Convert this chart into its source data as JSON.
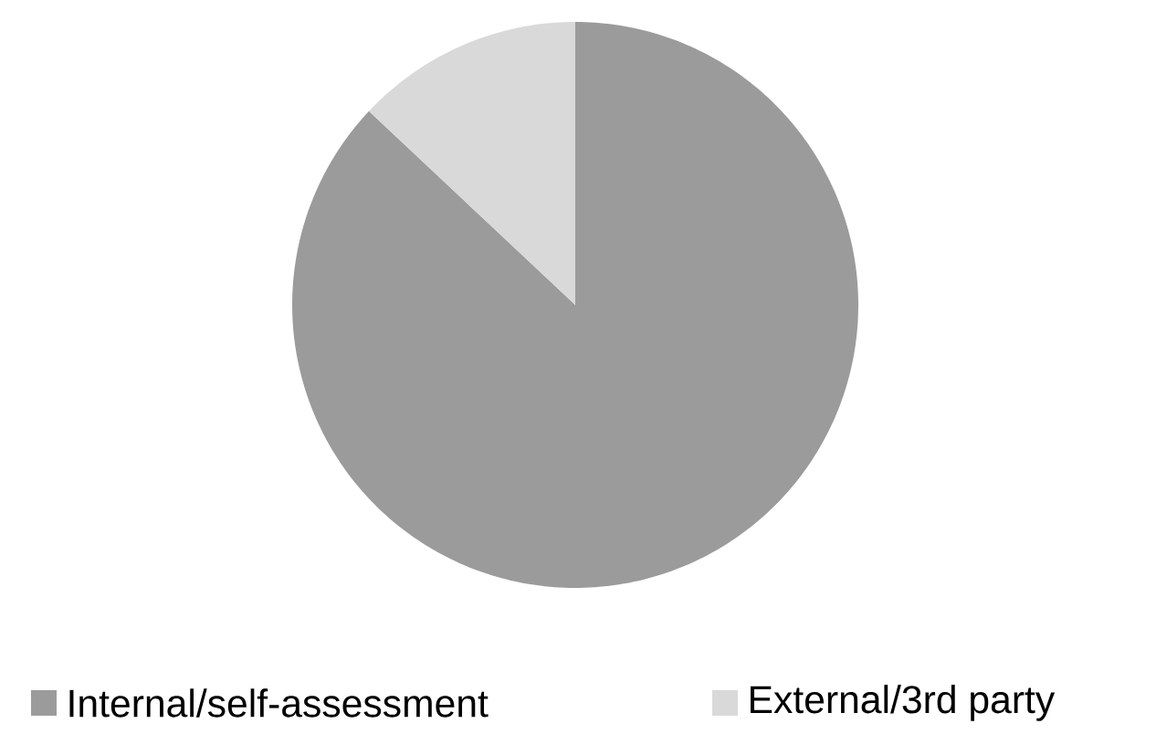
{
  "chart_data": {
    "type": "pie",
    "categories": [
      "Internal/self-assessment",
      "External/3rd party"
    ],
    "values": [
      87,
      13
    ],
    "colors": [
      "#9b9b9b",
      "#d9d9d9"
    ],
    "legend": "bottom"
  }
}
